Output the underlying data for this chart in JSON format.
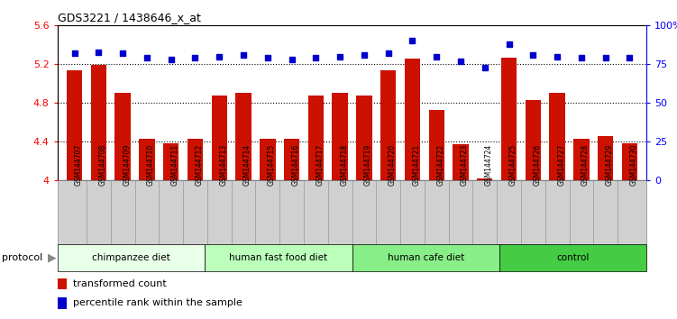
{
  "title": "GDS3221 / 1438646_x_at",
  "samples": [
    "GSM144707",
    "GSM144708",
    "GSM144709",
    "GSM144710",
    "GSM144711",
    "GSM144712",
    "GSM144713",
    "GSM144714",
    "GSM144715",
    "GSM144716",
    "GSM144717",
    "GSM144718",
    "GSM144719",
    "GSM144720",
    "GSM144721",
    "GSM144722",
    "GSM144723",
    "GSM144724",
    "GSM144725",
    "GSM144726",
    "GSM144727",
    "GSM144728",
    "GSM144729",
    "GSM144730"
  ],
  "bar_values": [
    5.14,
    5.19,
    4.9,
    4.43,
    4.38,
    4.43,
    4.88,
    4.9,
    4.43,
    4.43,
    4.88,
    4.9,
    4.88,
    5.14,
    5.26,
    4.73,
    4.37,
    4.02,
    5.27,
    4.83,
    4.9,
    4.43,
    4.46,
    4.38
  ],
  "dot_values": [
    82,
    83,
    82,
    79,
    78,
    79,
    80,
    81,
    79,
    78,
    79,
    80,
    81,
    82,
    90,
    80,
    77,
    73,
    88,
    81,
    80,
    79,
    79,
    79
  ],
  "groups": [
    {
      "label": "chimpanzee diet",
      "start": 0,
      "end": 6,
      "color": "#e8ffe8"
    },
    {
      "label": "human fast food diet",
      "start": 6,
      "end": 12,
      "color": "#bbffbb"
    },
    {
      "label": "human cafe diet",
      "start": 12,
      "end": 18,
      "color": "#88ee88"
    },
    {
      "label": "control",
      "start": 18,
      "end": 24,
      "color": "#44cc44"
    }
  ],
  "bar_color": "#cc1100",
  "dot_color": "#0000cc",
  "ylim_left": [
    4.0,
    5.6
  ],
  "ylim_right": [
    0,
    100
  ],
  "yticks_left": [
    4.0,
    4.4,
    4.8,
    5.2,
    5.6
  ],
  "yticks_right": [
    0,
    25,
    50,
    75,
    100
  ],
  "ytick_labels_left": [
    "4",
    "4.4",
    "4.8",
    "5.2",
    "5.6"
  ],
  "ytick_labels_right": [
    "0",
    "25",
    "50",
    "75",
    "100%"
  ],
  "legend_bar_label": "transformed count",
  "legend_dot_label": "percentile rank within the sample",
  "protocol_label": "protocol",
  "grid_values": [
    4.4,
    4.8,
    5.2
  ],
  "xlabel_bg_color": "#d0d0d0",
  "xlabel_border_color": "#888888"
}
